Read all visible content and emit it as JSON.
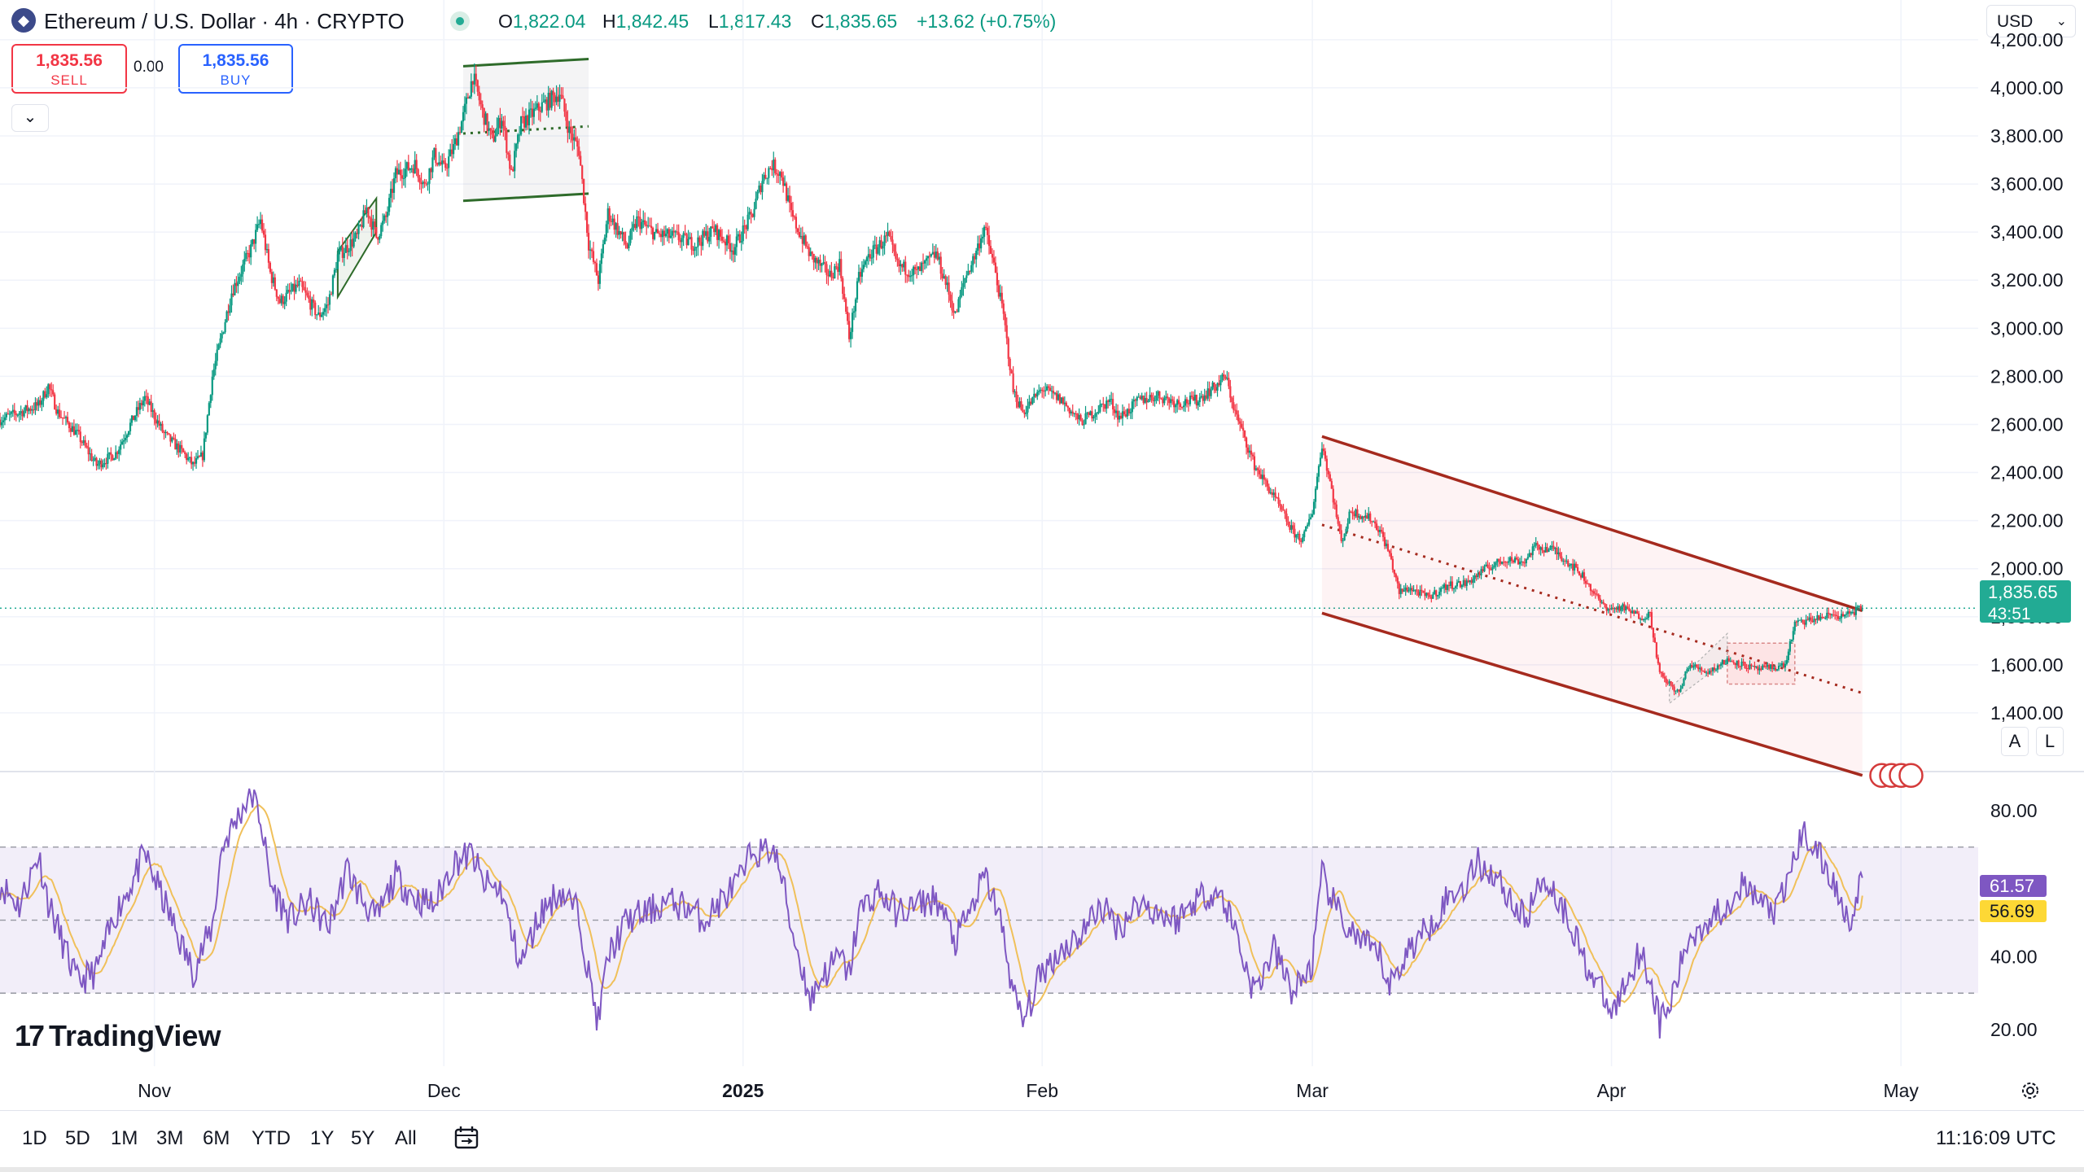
{
  "header": {
    "symbol_icon": "ethereum-icon",
    "title": "Ethereum / U.S. Dollar · 4h · CRYPTO",
    "ohlc": [
      {
        "key": "O",
        "value": "1,822.04"
      },
      {
        "key": "H",
        "value": "1,842.45"
      },
      {
        "key": "L",
        "value": "1,817.43"
      },
      {
        "key": "C",
        "value": "1,835.65"
      }
    ],
    "change": "+13.62 (+0.75%)",
    "currency": "USD"
  },
  "trade": {
    "sell_price": "1,835.56",
    "sell_label": "SELL",
    "spread": "0.00",
    "buy_price": "1,835.56",
    "buy_label": "BUY",
    "collapse_icon": "chevron-down-icon"
  },
  "price_tag": {
    "value": "1,835.65",
    "countdown": "43:51"
  },
  "rsi": {
    "value": "61.57",
    "ma_value": "56.69"
  },
  "pane_buttons": {
    "auto": "A",
    "log": "L"
  },
  "brand": {
    "mark": "17",
    "name": "TradingView"
  },
  "footer": {
    "ranges": [
      "1D",
      "5D",
      "1M",
      "3M",
      "6M",
      "YTD",
      "1Y",
      "5Y",
      "All"
    ],
    "calendar_icon": "calendar-range-icon",
    "clock": "11:16:09 UTC"
  },
  "colors": {
    "up": "#089981",
    "down": "#f23645",
    "channel": "#a52a1e",
    "rsi_line": "#7e57c2",
    "rsi_ma": "#f0c05a",
    "accent": "#22ab94"
  },
  "chart_data": {
    "type": "candlestick",
    "title": "Ethereum / U.S. Dollar · 4h · CRYPTO",
    "x_labels": [
      {
        "label": "Nov",
        "day": 0
      },
      {
        "label": "Dec",
        "day": 30
      },
      {
        "label": "2025",
        "day": 61
      },
      {
        "label": "Feb",
        "day": 92
      },
      {
        "label": "Mar",
        "day": 120
      },
      {
        "label": "Apr",
        "day": 151
      },
      {
        "label": "May",
        "day": 181
      }
    ],
    "x_range": [
      -16,
      189
    ],
    "y_range": [
      1200,
      4230
    ],
    "y_ticks": [
      4200,
      4000,
      3800,
      3600,
      3400,
      3200,
      3000,
      2800,
      2600,
      2400,
      2200,
      2000,
      1800,
      1600,
      1400
    ],
    "y_tick_labels": [
      "4,200.00",
      "4,000.00",
      "3,800.00",
      "3,600.00",
      "3,400.00",
      "3,200.00",
      "3,000.00",
      "2,800.00",
      "2,600.00",
      "2,400.00",
      "2,200.00",
      "2,000.00",
      "1,800.00",
      "1,600.00",
      "1,400.00"
    ],
    "last_price": 1835.65,
    "price_path": [
      [
        -16,
        2620
      ],
      [
        -12,
        2680
      ],
      [
        -11,
        2760
      ],
      [
        -10,
        2650
      ],
      [
        -8,
        2560
      ],
      [
        -6,
        2430
      ],
      [
        -4,
        2480
      ],
      [
        -2,
        2640
      ],
      [
        -1,
        2710
      ],
      [
        1,
        2560
      ],
      [
        3,
        2480
      ],
      [
        4,
        2430
      ],
      [
        5,
        2470
      ],
      [
        6,
        2800
      ],
      [
        8,
        3150
      ],
      [
        10,
        3330
      ],
      [
        11,
        3450
      ],
      [
        12,
        3230
      ],
      [
        13,
        3110
      ],
      [
        15,
        3180
      ],
      [
        17,
        3050
      ],
      [
        18,
        3100
      ],
      [
        19,
        3300
      ],
      [
        21,
        3380
      ],
      [
        22,
        3500
      ],
      [
        23,
        3380
      ],
      [
        24,
        3460
      ],
      [
        25,
        3640
      ],
      [
        27,
        3680
      ],
      [
        28,
        3590
      ],
      [
        29,
        3720
      ],
      [
        30,
        3660
      ],
      [
        31,
        3750
      ],
      [
        32,
        3880
      ],
      [
        33,
        4050
      ],
      [
        34,
        3900
      ],
      [
        35,
        3780
      ],
      [
        36,
        3880
      ],
      [
        37,
        3640
      ],
      [
        38,
        3850
      ],
      [
        40,
        3920
      ],
      [
        42,
        3980
      ],
      [
        43,
        3820
      ],
      [
        44,
        3740
      ],
      [
        45,
        3350
      ],
      [
        46,
        3200
      ],
      [
        47,
        3480
      ],
      [
        49,
        3340
      ],
      [
        50,
        3450
      ],
      [
        52,
        3390
      ],
      [
        54,
        3380
      ],
      [
        56,
        3350
      ],
      [
        58,
        3410
      ],
      [
        60,
        3330
      ],
      [
        62,
        3480
      ],
      [
        63,
        3620
      ],
      [
        64,
        3680
      ],
      [
        65,
        3640
      ],
      [
        66,
        3470
      ],
      [
        68,
        3300
      ],
      [
        70,
        3220
      ],
      [
        71,
        3270
      ],
      [
        72,
        2960
      ],
      [
        73,
        3210
      ],
      [
        74,
        3300
      ],
      [
        76,
        3380
      ],
      [
        77,
        3260
      ],
      [
        79,
        3230
      ],
      [
        81,
        3310
      ],
      [
        82,
        3190
      ],
      [
        83,
        3050
      ],
      [
        84,
        3210
      ],
      [
        85,
        3300
      ],
      [
        86,
        3420
      ],
      [
        87,
        3260
      ],
      [
        88,
        3050
      ],
      [
        89,
        2740
      ],
      [
        90,
        2650
      ],
      [
        92,
        2750
      ],
      [
        94,
        2700
      ],
      [
        96,
        2610
      ],
      [
        97,
        2640
      ],
      [
        99,
        2700
      ],
      [
        100,
        2630
      ],
      [
        101,
        2660
      ],
      [
        102,
        2700
      ],
      [
        104,
        2720
      ],
      [
        106,
        2690
      ],
      [
        108,
        2700
      ],
      [
        110,
        2760
      ],
      [
        111,
        2800
      ],
      [
        112,
        2650
      ],
      [
        114,
        2430
      ],
      [
        116,
        2300
      ],
      [
        118,
        2150
      ],
      [
        119,
        2120
      ],
      [
        120,
        2240
      ],
      [
        121,
        2520
      ],
      [
        122,
        2330
      ],
      [
        123,
        2110
      ],
      [
        124,
        2240
      ],
      [
        126,
        2210
      ],
      [
        127,
        2160
      ],
      [
        128,
        2060
      ],
      [
        129,
        1900
      ],
      [
        130,
        1920
      ],
      [
        132,
        1880
      ],
      [
        134,
        1930
      ],
      [
        136,
        1940
      ],
      [
        138,
        2000
      ],
      [
        140,
        2040
      ],
      [
        142,
        2030
      ],
      [
        143,
        2090
      ],
      [
        145,
        2080
      ],
      [
        147,
        2010
      ],
      [
        148,
        1970
      ],
      [
        150,
        1850
      ],
      [
        151,
        1830
      ],
      [
        152,
        1840
      ],
      [
        154,
        1800
      ],
      [
        155,
        1810
      ],
      [
        156,
        1560
      ],
      [
        157,
        1520
      ],
      [
        158,
        1480
      ],
      [
        159,
        1600
      ],
      [
        161,
        1570
      ],
      [
        163,
        1620
      ],
      [
        164,
        1610
      ],
      [
        166,
        1580
      ],
      [
        168,
        1590
      ],
      [
        169,
        1600
      ],
      [
        170,
        1770
      ],
      [
        172,
        1790
      ],
      [
        174,
        1810
      ],
      [
        175,
        1800
      ],
      [
        176,
        1820
      ],
      [
        177,
        1835.65
      ]
    ],
    "overlays": [
      {
        "type": "rectangle",
        "name": "December range",
        "corners": [
          [
            32,
            4115
          ],
          [
            45,
            3545
          ]
        ]
      },
      {
        "type": "channel",
        "name": "Descending channel",
        "start": {
          "day": 121,
          "top": 2550,
          "bottom": 1815
        },
        "end": {
          "day": 177,
          "top": 1825,
          "bottom": 1140
        }
      }
    ],
    "rsi": {
      "levels": [
        70,
        50,
        30
      ],
      "y_ticks": [
        80,
        40,
        20
      ],
      "y_tick_labels": [
        "80.00",
        "40.00",
        "20.00"
      ],
      "y_range": [
        10,
        88
      ],
      "current": 61.57,
      "ma_current": 56.69,
      "path": [
        [
          -16,
          60
        ],
        [
          -14,
          54
        ],
        [
          -12,
          68
        ],
        [
          -11,
          55
        ],
        [
          -9,
          40
        ],
        [
          -8,
          33
        ],
        [
          -6,
          36
        ],
        [
          -4,
          52
        ],
        [
          -2,
          62
        ],
        [
          -1,
          68
        ],
        [
          1,
          55
        ],
        [
          3,
          42
        ],
        [
          4,
          36
        ],
        [
          6,
          48
        ],
        [
          7,
          70
        ],
        [
          9,
          80
        ],
        [
          10,
          85
        ],
        [
          11,
          78
        ],
        [
          12,
          60
        ],
        [
          14,
          50
        ],
        [
          16,
          55
        ],
        [
          18,
          48
        ],
        [
          20,
          64
        ],
        [
          21,
          58
        ],
        [
          23,
          50
        ],
        [
          25,
          62
        ],
        [
          27,
          56
        ],
        [
          29,
          54
        ],
        [
          31,
          66
        ],
        [
          33,
          68
        ],
        [
          34,
          60
        ],
        [
          36,
          58
        ],
        [
          37,
          46
        ],
        [
          38,
          38
        ],
        [
          40,
          52
        ],
        [
          42,
          58
        ],
        [
          44,
          52
        ],
        [
          45,
          35
        ],
        [
          46,
          22
        ],
        [
          47,
          40
        ],
        [
          49,
          50
        ],
        [
          51,
          52
        ],
        [
          53,
          55
        ],
        [
          55,
          54
        ],
        [
          57,
          50
        ],
        [
          59,
          56
        ],
        [
          61,
          62
        ],
        [
          62,
          70
        ],
        [
          63,
          68
        ],
        [
          64,
          70
        ],
        [
          65,
          62
        ],
        [
          66,
          48
        ],
        [
          67,
          38
        ],
        [
          68,
          28
        ],
        [
          69,
          34
        ],
        [
          71,
          40
        ],
        [
          72,
          35
        ],
        [
          73,
          52
        ],
        [
          75,
          58
        ],
        [
          77,
          52
        ],
        [
          79,
          54
        ],
        [
          81,
          56
        ],
        [
          83,
          44
        ],
        [
          85,
          55
        ],
        [
          86,
          62
        ],
        [
          87,
          56
        ],
        [
          88,
          46
        ],
        [
          89,
          30
        ],
        [
          90,
          22
        ],
        [
          92,
          36
        ],
        [
          94,
          42
        ],
        [
          96,
          46
        ],
        [
          98,
          54
        ],
        [
          100,
          48
        ],
        [
          102,
          55
        ],
        [
          104,
          52
        ],
        [
          106,
          50
        ],
        [
          108,
          56
        ],
        [
          110,
          58
        ],
        [
          111,
          54
        ],
        [
          112,
          48
        ],
        [
          113,
          38
        ],
        [
          114,
          30
        ],
        [
          116,
          42
        ],
        [
          118,
          30
        ],
        [
          120,
          38
        ],
        [
          121,
          62
        ],
        [
          123,
          50
        ],
        [
          125,
          44
        ],
        [
          127,
          40
        ],
        [
          128,
          32
        ],
        [
          130,
          42
        ],
        [
          132,
          48
        ],
        [
          134,
          56
        ],
        [
          136,
          60
        ],
        [
          137,
          66
        ],
        [
          139,
          62
        ],
        [
          141,
          54
        ],
        [
          142,
          50
        ],
        [
          144,
          62
        ],
        [
          145,
          58
        ],
        [
          147,
          48
        ],
        [
          148,
          40
        ],
        [
          150,
          30
        ],
        [
          151,
          24
        ],
        [
          152,
          30
        ],
        [
          154,
          42
        ],
        [
          155,
          34
        ],
        [
          156,
          22
        ],
        [
          157,
          26
        ],
        [
          159,
          45
        ],
        [
          161,
          50
        ],
        [
          163,
          54
        ],
        [
          164,
          60
        ],
        [
          166,
          56
        ],
        [
          168,
          52
        ],
        [
          169,
          58
        ],
        [
          170,
          68
        ],
        [
          171,
          74
        ],
        [
          172,
          70
        ],
        [
          174,
          60
        ],
        [
          175,
          54
        ],
        [
          176,
          50
        ],
        [
          177,
          61.57
        ]
      ]
    }
  }
}
